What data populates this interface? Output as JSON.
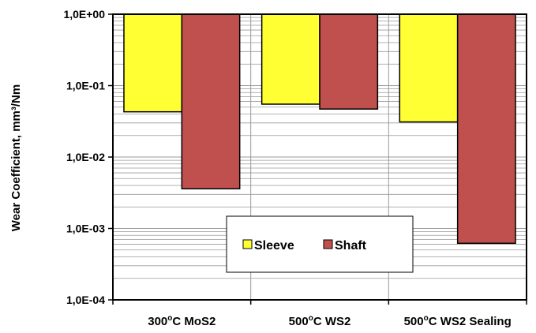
{
  "chart_data": {
    "type": "bar",
    "categories": [
      "300°C MoS2",
      "500°C WS2",
      "500°C WS2 Sealing"
    ],
    "category_parts": [
      {
        "num": "300",
        "sup": "o",
        "rest": "C MoS2"
      },
      {
        "num": "500",
        "sup": "o",
        "rest": "C WS2"
      },
      {
        "num": "500",
        "sup": "o",
        "rest": "C WS2 Sealing"
      }
    ],
    "series": [
      {
        "name": "Sleeve",
        "color": "#FFFF33",
        "values": [
          0.043,
          0.055,
          0.031
        ]
      },
      {
        "name": "Shaft",
        "color": "#C0504D",
        "values": [
          0.0036,
          0.047,
          0.00062
        ]
      }
    ],
    "ylabel": "Wear Coefficient,  mm³/Nm",
    "yscale": "log",
    "ylim": [
      0.0001,
      1
    ],
    "yticks": [
      1,
      0.1,
      0.01,
      0.001,
      0.0001
    ],
    "ytick_labels": [
      "1,0E+00",
      "1,0E-01",
      "1,0E-02",
      "1,0E-03",
      "1,0E-04"
    ],
    "bar_baseline": 1,
    "grid": true,
    "legend": "inside, lower center"
  }
}
